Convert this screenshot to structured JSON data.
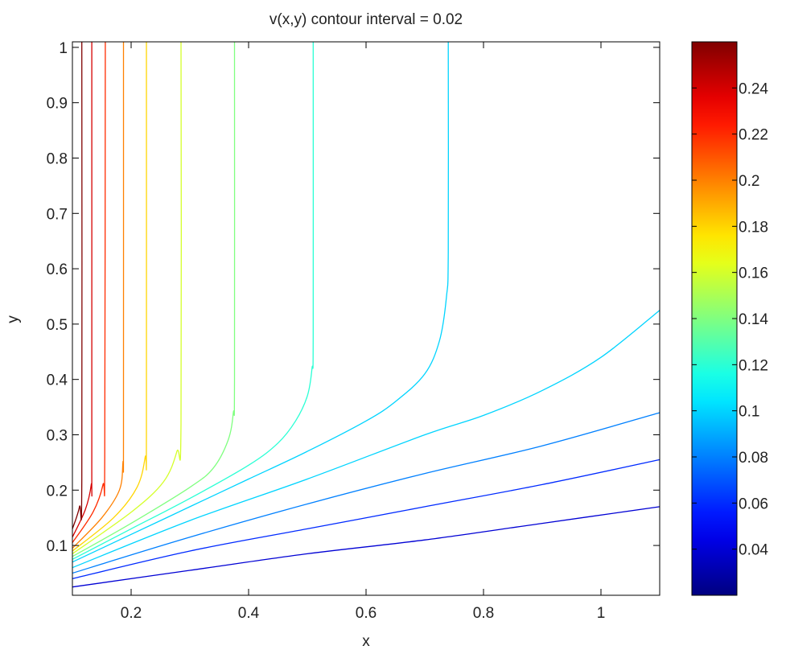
{
  "chart_data": {
    "type": "contour",
    "title": "v(x,y) contour interval = 0.02",
    "xlabel": "x",
    "ylabel": "y",
    "xlim": [
      0.1,
      1.1
    ],
    "ylim": [
      0.01,
      1.01
    ],
    "xticks": [
      0.2,
      0.4,
      0.6,
      0.8,
      1
    ],
    "xtick_labels": [
      "0.2",
      "0.4",
      "0.6",
      "0.8",
      "1"
    ],
    "yticks": [
      0.1,
      0.2,
      0.3,
      0.4,
      0.5,
      0.6,
      0.7,
      0.8,
      0.9,
      1
    ],
    "ytick_labels": [
      "0.1",
      "0.2",
      "0.3",
      "0.4",
      "0.5",
      "0.6",
      "0.7",
      "0.8",
      "0.9",
      "1"
    ],
    "grid": false,
    "colormap": "jet",
    "colorbar": {
      "range": [
        0.02,
        0.26
      ],
      "ticks": [
        0.04,
        0.06,
        0.08,
        0.1,
        0.12,
        0.14,
        0.16,
        0.18,
        0.2,
        0.22,
        0.24
      ],
      "tick_labels": [
        "0.04",
        "0.06",
        "0.08",
        "0.1",
        "0.12",
        "0.14",
        "0.16",
        "0.18",
        "0.2",
        "0.22",
        "0.24"
      ]
    },
    "contour_interval": 0.02,
    "contours": [
      {
        "level": 0.04,
        "points": [
          [
            0.1,
            0.025
          ],
          [
            0.3,
            0.055
          ],
          [
            0.5,
            0.085
          ],
          [
            0.7,
            0.11
          ],
          [
            0.9,
            0.14
          ],
          [
            1.1,
            0.17
          ]
        ]
      },
      {
        "level": 0.06,
        "points": [
          [
            0.1,
            0.04
          ],
          [
            0.3,
            0.09
          ],
          [
            0.5,
            0.13
          ],
          [
            0.7,
            0.17
          ],
          [
            0.9,
            0.21
          ],
          [
            1.1,
            0.255
          ]
        ]
      },
      {
        "level": 0.08,
        "points": [
          [
            0.1,
            0.05
          ],
          [
            0.3,
            0.115
          ],
          [
            0.5,
            0.175
          ],
          [
            0.7,
            0.23
          ],
          [
            0.9,
            0.28
          ],
          [
            1.1,
            0.34
          ]
        ]
      },
      {
        "level": 0.1,
        "points": [
          [
            0.1,
            0.06
          ],
          [
            0.3,
            0.145
          ],
          [
            0.5,
            0.22
          ],
          [
            0.7,
            0.3
          ],
          [
            0.8,
            0.335
          ],
          [
            0.9,
            0.38
          ],
          [
            1.0,
            0.44
          ],
          [
            1.1,
            0.525
          ]
        ]
      },
      {
        "level": 0.1,
        "points": [
          [
            0.1,
            0.07
          ],
          [
            0.2,
            0.12
          ],
          [
            0.3,
            0.17
          ],
          [
            0.4,
            0.22
          ],
          [
            0.5,
            0.27
          ],
          [
            0.6,
            0.325
          ],
          [
            0.65,
            0.36
          ],
          [
            0.7,
            0.41
          ],
          [
            0.725,
            0.47
          ],
          [
            0.737,
            0.55
          ],
          [
            0.74,
            0.63
          ],
          [
            0.74,
            1.01
          ]
        ]
      },
      {
        "level": 0.12,
        "points": [
          [
            0.1,
            0.075
          ],
          [
            0.2,
            0.13
          ],
          [
            0.3,
            0.185
          ],
          [
            0.4,
            0.245
          ],
          [
            0.45,
            0.285
          ],
          [
            0.48,
            0.325
          ],
          [
            0.5,
            0.37
          ],
          [
            0.508,
            0.42
          ],
          [
            0.51,
            0.48
          ],
          [
            0.51,
            1.01
          ]
        ]
      },
      {
        "level": 0.14,
        "points": [
          [
            0.1,
            0.08
          ],
          [
            0.2,
            0.14
          ],
          [
            0.3,
            0.205
          ],
          [
            0.34,
            0.24
          ],
          [
            0.365,
            0.29
          ],
          [
            0.374,
            0.34
          ],
          [
            0.376,
            0.4
          ],
          [
            0.376,
            1.01
          ]
        ]
      },
      {
        "level": 0.16,
        "points": [
          [
            0.1,
            0.085
          ],
          [
            0.2,
            0.16
          ],
          [
            0.255,
            0.215
          ],
          [
            0.278,
            0.27
          ],
          [
            0.285,
            0.32
          ],
          [
            0.285,
            1.01
          ]
        ]
      },
      {
        "level": 0.18,
        "points": [
          [
            0.1,
            0.09
          ],
          [
            0.17,
            0.15
          ],
          [
            0.21,
            0.205
          ],
          [
            0.224,
            0.26
          ],
          [
            0.226,
            0.3
          ],
          [
            0.226,
            1.01
          ]
        ]
      },
      {
        "level": 0.2,
        "points": [
          [
            0.1,
            0.095
          ],
          [
            0.15,
            0.15
          ],
          [
            0.18,
            0.2
          ],
          [
            0.186,
            0.25
          ],
          [
            0.187,
            0.3
          ],
          [
            0.187,
            1.01
          ]
        ]
      },
      {
        "level": 0.22,
        "points": [
          [
            0.1,
            0.105
          ],
          [
            0.135,
            0.16
          ],
          [
            0.152,
            0.21
          ],
          [
            0.155,
            0.26
          ],
          [
            0.156,
            1.01
          ]
        ]
      },
      {
        "level": 0.24,
        "points": [
          [
            0.1,
            0.115
          ],
          [
            0.122,
            0.165
          ],
          [
            0.132,
            0.21
          ],
          [
            0.133,
            0.26
          ],
          [
            0.133,
            1.01
          ]
        ]
      },
      {
        "level": 0.26,
        "points": [
          [
            0.1,
            0.13
          ],
          [
            0.112,
            0.17
          ],
          [
            0.116,
            0.22
          ],
          [
            0.116,
            1.01
          ]
        ]
      }
    ]
  }
}
